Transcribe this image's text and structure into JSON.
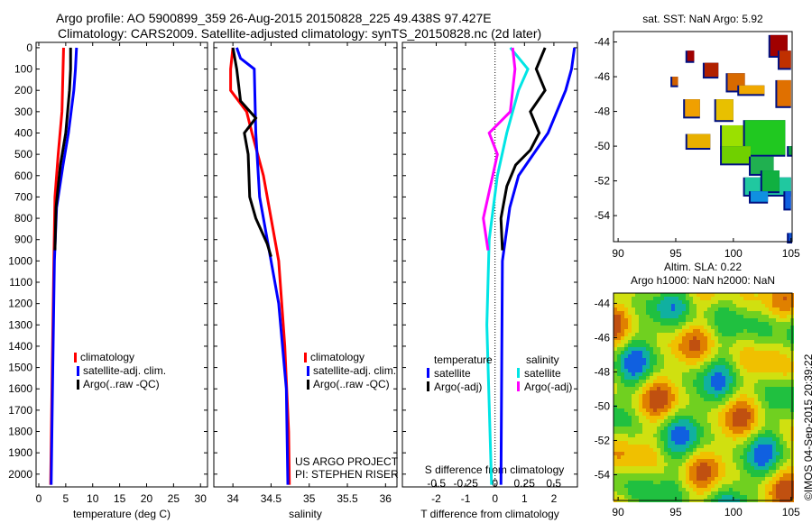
{
  "title_line1": "Argo profile: AO 5900899_359 26-Aug-2015 20150828_225 49.438S 97.427E",
  "title_line2": "Climatology: CARS2009. Satellite-adjusted climatology: synTS_20150828.nc (2d later)",
  "timestamp": "©IMOS 04-Sep-2015 20:39:22",
  "colors": {
    "clim": "#ff0000",
    "sat": "#0000ff",
    "argo": "#000000",
    "s_sat": "#00e5e5",
    "s_argo": "#ff00ff"
  },
  "chart_data": [
    {
      "type": "line",
      "xlabel": "temperature (deg C)",
      "xlim": [
        -0.5,
        31.3
      ],
      "ylim": [
        -25,
        2060
      ],
      "xticks": [
        "0",
        "5",
        "10",
        "15",
        "20",
        "25",
        "30"
      ],
      "xtickvals": [
        0,
        5,
        10,
        15,
        20,
        25,
        30
      ],
      "yticks": [
        "0",
        "100",
        "200",
        "300",
        "400",
        "500",
        "600",
        "700",
        "800",
        "900",
        "1000",
        "1100",
        "1200",
        "1300",
        "1400",
        "1500",
        "1600",
        "1700",
        "1800",
        "1900",
        "2000"
      ],
      "legend": [
        "climatology",
        "satellite-adj. clim.",
        "Argo(..raw -QC)"
      ],
      "series": [
        {
          "name": "climatology",
          "color": "#ff0000",
          "points": [
            [
              4.6,
              0
            ],
            [
              4.5,
              100
            ],
            [
              4.3,
              300
            ],
            [
              3.6,
              500
            ],
            [
              3.0,
              700
            ],
            [
              2.8,
              1000
            ],
            [
              2.5,
              1500
            ],
            [
              2.2,
              2050
            ]
          ]
        },
        {
          "name": "satellite-adj. clim.",
          "color": "#0000ff",
          "points": [
            [
              7.0,
              0
            ],
            [
              6.8,
              100
            ],
            [
              6.5,
              200
            ],
            [
              5.5,
              400
            ],
            [
              4.5,
              550
            ],
            [
              3.3,
              750
            ],
            [
              2.9,
              1000
            ],
            [
              2.6,
              1500
            ],
            [
              2.3,
              2050
            ]
          ]
        },
        {
          "name": "Argo(..raw -QC)",
          "color": "#000000",
          "points": [
            [
              5.9,
              0
            ],
            [
              5.9,
              100
            ],
            [
              5.7,
              200
            ],
            [
              5.0,
              400
            ],
            [
              4.0,
              550
            ],
            [
              3.2,
              750
            ],
            [
              3.0,
              950
            ]
          ]
        }
      ]
    },
    {
      "type": "line",
      "xlabel": "salinity",
      "xlim": [
        33.75,
        36.15
      ],
      "ylim": [
        -25,
        2060
      ],
      "xticks": [
        "34",
        "34.5",
        "35",
        "35.5",
        "36"
      ],
      "xtickvals": [
        34,
        34.5,
        35,
        35.5,
        36
      ],
      "legend": [
        "climatology",
        "satellite-adj. clim.",
        "Argo(..raw -QC)"
      ],
      "annotation": [
        "US ARGO PROJECT",
        "PI: STEPHEN RISER"
      ],
      "series": [
        {
          "name": "climatology",
          "color": "#ff0000",
          "points": [
            [
              34.0,
              0
            ],
            [
              33.97,
              100
            ],
            [
              33.97,
              200
            ],
            [
              34.18,
              300
            ],
            [
              34.25,
              400
            ],
            [
              34.4,
              600
            ],
            [
              34.5,
              800
            ],
            [
              34.6,
              1000
            ],
            [
              34.68,
              1400
            ],
            [
              34.73,
              1800
            ],
            [
              34.74,
              2050
            ]
          ]
        },
        {
          "name": "satellite-adj. clim.",
          "color": "#0000ff",
          "points": [
            [
              34.05,
              0
            ],
            [
              34.1,
              50
            ],
            [
              34.28,
              100
            ],
            [
              34.3,
              400
            ],
            [
              34.35,
              700
            ],
            [
              34.45,
              900
            ],
            [
              34.6,
              1200
            ],
            [
              34.7,
              1600
            ],
            [
              34.72,
              2050
            ]
          ]
        },
        {
          "name": "Argo(..raw -QC)",
          "color": "#000000",
          "points": [
            [
              34.0,
              0
            ],
            [
              34.05,
              100
            ],
            [
              34.1,
              250
            ],
            [
              34.3,
              330
            ],
            [
              34.15,
              400
            ],
            [
              34.2,
              500
            ],
            [
              34.22,
              700
            ],
            [
              34.3,
              800
            ],
            [
              34.45,
              920
            ],
            [
              34.5,
              980
            ]
          ]
        }
      ]
    },
    {
      "type": "line",
      "xlabel": "T difference from climatology",
      "xlabel2": "S difference from climatology",
      "xlim": [
        -3.15,
        2.8
      ],
      "ylim": [
        -25,
        2060
      ],
      "xticks": [
        "-2",
        "-1",
        "0",
        "1",
        "2"
      ],
      "xtickvals": [
        -2,
        -1,
        0,
        1,
        2
      ],
      "x2ticks": [
        "-0.5",
        "-0.25",
        "0",
        "0.25",
        "0.5"
      ],
      "x2tickvals": [
        -0.5,
        -0.25,
        0,
        0.25,
        0.5
      ],
      "legend_t": {
        "title": "temperature",
        "items": [
          "satellite",
          "Argo(-adj)"
        ]
      },
      "legend_s": {
        "title": "salinity",
        "items": [
          "satellite",
          "Argo(-adj)"
        ]
      },
      "series": [
        {
          "name": "T satellite",
          "axis": "T",
          "color": "#0000ff",
          "points": [
            [
              2.7,
              0
            ],
            [
              2.6,
              100
            ],
            [
              2.4,
              200
            ],
            [
              2.1,
              300
            ],
            [
              1.8,
              400
            ],
            [
              1.3,
              500
            ],
            [
              0.8,
              600
            ],
            [
              0.5,
              750
            ],
            [
              0.35,
              900
            ],
            [
              0.25,
              1000
            ],
            [
              0.2,
              2050
            ]
          ]
        },
        {
          "name": "T Argo(-adj)",
          "axis": "T",
          "color": "#000000",
          "points": [
            [
              1.7,
              0
            ],
            [
              1.4,
              100
            ],
            [
              1.7,
              200
            ],
            [
              1.2,
              300
            ],
            [
              1.5,
              400
            ],
            [
              1.2,
              480
            ],
            [
              0.7,
              550
            ],
            [
              0.4,
              650
            ],
            [
              0.2,
              800
            ],
            [
              0.25,
              950
            ]
          ]
        },
        {
          "name": "S satellite",
          "axis": "S",
          "color": "#00e5e5",
          "points": [
            [
              0.13,
              0
            ],
            [
              0.28,
              100
            ],
            [
              0.2,
              200
            ],
            [
              0.1,
              400
            ],
            [
              0.02,
              600
            ],
            [
              -0.05,
              900
            ],
            [
              -0.07,
              1300
            ],
            [
              -0.03,
              2050
            ]
          ]
        },
        {
          "name": "S Argo(-adj)",
          "axis": "S",
          "color": "#ff00ff",
          "points": [
            [
              0.15,
              0
            ],
            [
              0.17,
              100
            ],
            [
              0.13,
              300
            ],
            [
              -0.05,
              400
            ],
            [
              0.02,
              500
            ],
            [
              -0.02,
              600
            ],
            [
              -0.1,
              800
            ],
            [
              -0.06,
              950
            ]
          ]
        }
      ]
    },
    {
      "type": "heatmap",
      "title": "sat. SST: NaN Argo: 5.92",
      "xticks": [
        "90",
        "95",
        "100",
        "105"
      ],
      "yticks": [
        "-44",
        "-46",
        "-48",
        "-50",
        "-52",
        "-54"
      ],
      "xlim": [
        89.6,
        105.1
      ],
      "ylim": [
        -55.5,
        -43.4
      ],
      "cells": [
        [
          96,
          -44.5,
          0.6,
          0.6,
          "#a00000"
        ],
        [
          97.5,
          -45.2,
          1.2,
          0.8,
          "#b02000"
        ],
        [
          99.5,
          -45.8,
          1.5,
          1,
          "#d86a00"
        ],
        [
          103.2,
          -43.6,
          1.5,
          1.2,
          "#a00000"
        ],
        [
          104,
          -44.5,
          1,
          1,
          "#c03000"
        ],
        [
          103.8,
          -46.2,
          1.2,
          1.5,
          "#e07000"
        ],
        [
          94.7,
          -46,
          0.5,
          0.5,
          "#d06000"
        ],
        [
          95.8,
          -47.3,
          1.3,
          1,
          "#f0a000"
        ],
        [
          98.5,
          -47.3,
          1.5,
          1.2,
          "#e8c000"
        ],
        [
          100.5,
          -46.5,
          2.2,
          0.5,
          "#f0a800"
        ],
        [
          99,
          -48.8,
          3,
          1.3,
          "#9be000"
        ],
        [
          101,
          -48.5,
          3.5,
          2,
          "#20c820"
        ],
        [
          96,
          -49.3,
          2,
          0.8,
          "#e8b000"
        ],
        [
          99,
          -50,
          2.5,
          1,
          "#70d000"
        ],
        [
          101.5,
          -50.6,
          2,
          1,
          "#20b050"
        ],
        [
          101,
          -51.8,
          4,
          1,
          "#20c8a0"
        ],
        [
          102.5,
          -51.4,
          1.5,
          1.2,
          "#10b040"
        ],
        [
          101.5,
          -52.6,
          1.5,
          0.6,
          "#1090e0"
        ],
        [
          104.5,
          -52.6,
          0.5,
          1,
          "#1060e0"
        ],
        [
          104.8,
          -55,
          0.3,
          0.5,
          "#1050d0"
        ],
        [
          104.8,
          -50,
          0.3,
          0.5,
          "#10a040"
        ]
      ]
    },
    {
      "type": "heatmap",
      "title": "Altim. SLA: 0.22",
      "subtitle": "Argo h1000: NaN h2000: NaN",
      "xticks": [
        "90",
        "95",
        "100",
        "105"
      ],
      "yticks": [
        "-44",
        "-46",
        "-48",
        "-50",
        "-52",
        "-54"
      ],
      "xlim": [
        89.6,
        105.1
      ],
      "ylim": [
        -55.5,
        -43.4
      ]
    }
  ]
}
